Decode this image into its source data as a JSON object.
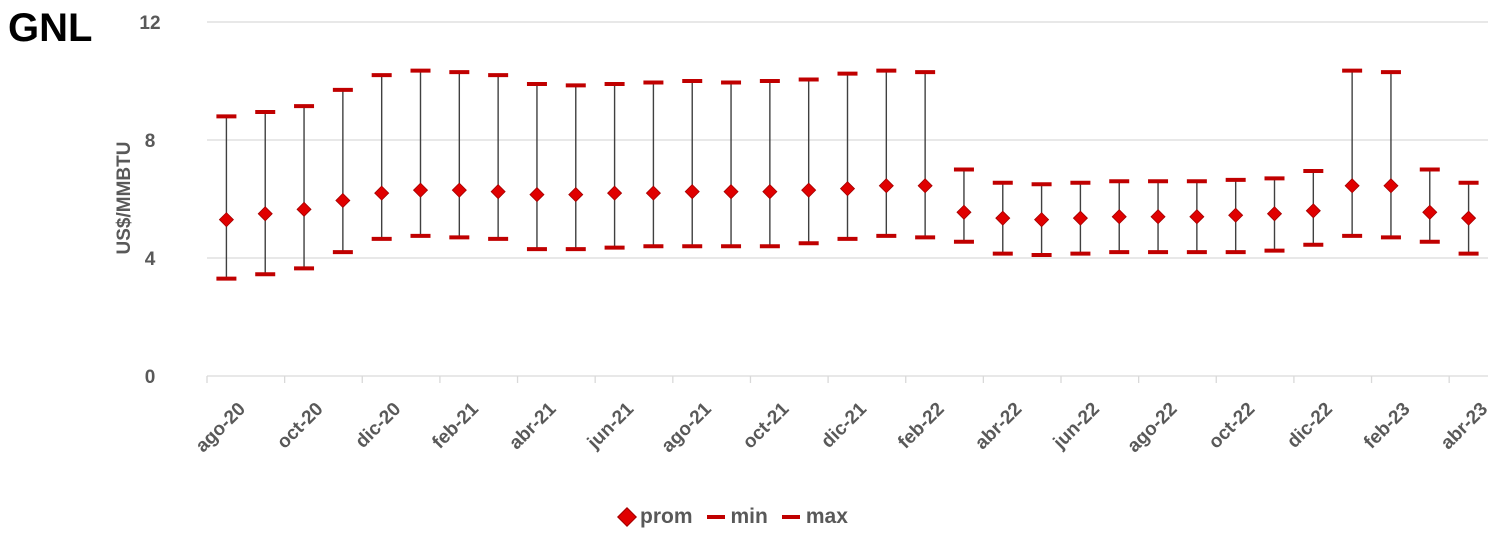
{
  "title": "GNL",
  "chart_data": {
    "type": "scatter",
    "ylabel": "US$/MMBTU",
    "ylim": [
      0,
      12
    ],
    "yticks": [
      0,
      4,
      8,
      12
    ],
    "grid": true,
    "legend_position": "bottom",
    "colors": {
      "prom": "#e00000",
      "min": "#c00000",
      "max": "#c00000",
      "whisker": "#404040",
      "grid": "#d9d9d9"
    },
    "x": [
      "ago-20",
      "sep-20",
      "oct-20",
      "nov-20",
      "dic-20",
      "ene-21",
      "feb-21",
      "mar-21",
      "abr-21",
      "may-21",
      "jun-21",
      "jul-21",
      "ago-21",
      "sep-21",
      "oct-21",
      "nov-21",
      "dic-21",
      "ene-22",
      "feb-22",
      "mar-22",
      "abr-22",
      "may-22",
      "jun-22",
      "jul-22",
      "ago-22",
      "sep-22",
      "oct-22",
      "nov-22",
      "dic-22",
      "ene-23",
      "feb-23",
      "mar-23",
      "abr-23"
    ],
    "x_tick_labels": [
      "ago-20",
      "oct-20",
      "dic-20",
      "feb-21",
      "abr-21",
      "jun-21",
      "ago-21",
      "oct-21",
      "dic-21",
      "feb-22",
      "abr-22",
      "jun-22",
      "ago-22",
      "oct-22",
      "dic-22",
      "feb-23",
      "abr-23"
    ],
    "series": [
      {
        "name": "prom",
        "values": [
          5.3,
          5.5,
          5.65,
          5.95,
          6.2,
          6.3,
          6.3,
          6.25,
          6.15,
          6.15,
          6.2,
          6.2,
          6.25,
          6.25,
          6.25,
          6.3,
          6.35,
          6.45,
          6.45,
          5.55,
          5.35,
          5.3,
          5.35,
          5.4,
          5.4,
          5.4,
          5.45,
          5.5,
          5.6,
          6.45,
          6.45,
          5.55,
          5.35
        ]
      },
      {
        "name": "min",
        "values": [
          3.3,
          3.45,
          3.65,
          4.2,
          4.65,
          4.75,
          4.7,
          4.65,
          4.3,
          4.3,
          4.35,
          4.4,
          4.4,
          4.4,
          4.4,
          4.5,
          4.65,
          4.75,
          4.7,
          4.55,
          4.15,
          4.1,
          4.15,
          4.2,
          4.2,
          4.2,
          4.2,
          4.25,
          4.45,
          4.75,
          4.7,
          4.55,
          4.15
        ]
      },
      {
        "name": "max",
        "values": [
          8.8,
          8.95,
          9.15,
          9.7,
          10.2,
          10.35,
          10.3,
          10.2,
          9.9,
          9.85,
          9.9,
          9.95,
          10.0,
          9.95,
          10.0,
          10.05,
          10.25,
          10.35,
          10.3,
          7.0,
          6.55,
          6.5,
          6.55,
          6.6,
          6.6,
          6.6,
          6.65,
          6.7,
          6.95,
          10.35,
          10.3,
          7.0,
          6.55
        ]
      }
    ]
  }
}
